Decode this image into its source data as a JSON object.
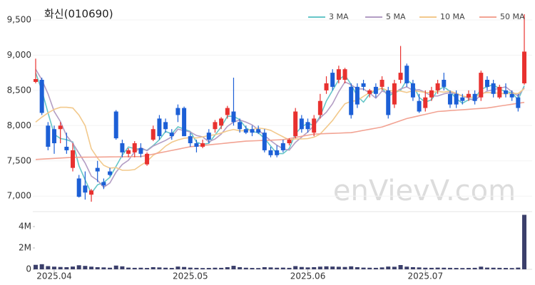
{
  "chart_data": {
    "type": "candlestick",
    "title": "화신(010690)",
    "watermark": "enVievV.com",
    "categories": [
      null,
      null,
      null,
      "2025.04",
      null,
      null,
      null,
      null,
      null,
      null,
      null,
      null,
      null,
      null,
      null,
      null,
      null,
      null,
      null,
      null,
      null,
      null,
      null,
      null,
      null,
      "2025.05",
      null,
      null,
      null,
      null,
      null,
      null,
      null,
      null,
      null,
      null,
      null,
      null,
      null,
      null,
      null,
      null,
      null,
      null,
      "2025.06",
      null,
      null,
      null,
      null,
      null,
      null,
      null,
      null,
      null,
      null,
      null,
      null,
      null,
      null,
      null,
      null,
      null,
      null,
      "2025.07",
      null,
      null,
      null,
      null,
      null,
      null,
      null,
      null,
      null,
      null,
      null,
      null,
      null,
      null,
      null,
      null
    ],
    "open": [
      8620,
      8650,
      8000,
      7950,
      7950,
      7700,
      7400,
      7250,
      7150,
      7020,
      7400,
      7200,
      7350,
      8200,
      7750,
      7600,
      7620,
      7680,
      7450,
      7800,
      8100,
      8050,
      7900,
      8250,
      8250,
      7850,
      7750,
      7700,
      7900,
      7950,
      8000,
      8150,
      8200,
      8050,
      7950,
      7950,
      7950,
      7900,
      7650,
      7650,
      7750,
      7750,
      7850,
      8100,
      8050,
      7900,
      8150,
      8500,
      8750,
      8650,
      8650,
      8550,
      8550,
      8600,
      8450,
      8550,
      8550,
      8500,
      8300,
      8650,
      8850,
      8600,
      8350,
      8250,
      8400,
      8500,
      8650,
      8450,
      8450,
      8400,
      8400,
      8450,
      8400,
      8650,
      8600,
      8400,
      8500,
      8450,
      8400,
      8600
    ],
    "high": [
      8950,
      8680,
      8050,
      8000,
      8050,
      7900,
      7750,
      7300,
      7350,
      7100,
      7500,
      7250,
      7400,
      8220,
      7800,
      7680,
      7780,
      7750,
      7620,
      8000,
      8150,
      8100,
      7950,
      8300,
      8270,
      7900,
      7800,
      7800,
      7950,
      8080,
      8120,
      8280,
      8680,
      8100,
      8000,
      8000,
      8000,
      7950,
      7700,
      7720,
      7800,
      7820,
      8250,
      8150,
      8100,
      8150,
      8450,
      8700,
      8800,
      8850,
      8820,
      8600,
      8600,
      8650,
      8520,
      8600,
      8700,
      8550,
      8650,
      9130,
      8880,
      8650,
      8450,
      8500,
      8550,
      8650,
      8750,
      8500,
      8500,
      8450,
      8500,
      8500,
      8780,
      8700,
      8650,
      8580,
      8600,
      8500,
      8450,
      9580
    ],
    "low": [
      8600,
      8150,
      7650,
      7600,
      7750,
      7600,
      7350,
      6980,
      6950,
      6920,
      7200,
      7100,
      7280,
      7800,
      7550,
      7550,
      7550,
      7550,
      7430,
      7780,
      7800,
      7900,
      7800,
      8050,
      7850,
      7700,
      7620,
      7680,
      7750,
      7900,
      7950,
      8100,
      8000,
      7900,
      7880,
      7850,
      7880,
      7620,
      7550,
      7550,
      7620,
      7720,
      7820,
      7900,
      7900,
      7850,
      8100,
      8450,
      8500,
      8600,
      8600,
      8100,
      8250,
      8500,
      8400,
      8400,
      8500,
      8100,
      8250,
      8600,
      8550,
      8350,
      8180,
      8200,
      8350,
      8450,
      8500,
      8250,
      8250,
      8300,
      8350,
      8300,
      8350,
      8500,
      8400,
      8380,
      8400,
      8350,
      8200,
      8580
    ],
    "close": [
      8660,
      8180,
      7700,
      7750,
      8000,
      7650,
      7650,
      6990,
      7050,
      7080,
      7350,
      7150,
      7300,
      7820,
      7620,
      7650,
      7750,
      7600,
      7600,
      7950,
      7850,
      7950,
      7850,
      8150,
      7850,
      7750,
      7700,
      7750,
      7800,
      8050,
      8100,
      8250,
      8050,
      7950,
      7900,
      7900,
      7900,
      7650,
      7580,
      7580,
      7650,
      7800,
      8200,
      7950,
      7950,
      8100,
      8350,
      8600,
      8550,
      8800,
      8800,
      8150,
      8300,
      8550,
      8500,
      8450,
      8650,
      8150,
      8600,
      8750,
      8600,
      8400,
      8200,
      8400,
      8500,
      8600,
      8550,
      8300,
      8300,
      8350,
      8450,
      8350,
      8750,
      8550,
      8450,
      8550,
      8450,
      8400,
      8250,
      9050
    ],
    "volume": [
      420000,
      480000,
      300000,
      250000,
      220000,
      200000,
      260000,
      380000,
      320000,
      250000,
      200000,
      180000,
      150000,
      350000,
      280000,
      160000,
      140000,
      150000,
      130000,
      200000,
      180000,
      150000,
      130000,
      260000,
      220000,
      160000,
      140000,
      120000,
      130000,
      150000,
      140000,
      200000,
      330000,
      200000,
      150000,
      130000,
      120000,
      200000,
      180000,
      150000,
      160000,
      140000,
      300000,
      220000,
      180000,
      200000,
      250000,
      280000,
      260000,
      240000,
      220000,
      280000,
      200000,
      160000,
      150000,
      140000,
      180000,
      260000,
      240000,
      400000,
      250000,
      200000,
      180000,
      150000,
      140000,
      160000,
      150000,
      140000,
      130000,
      120000,
      130000,
      140000,
      250000,
      160000,
      150000,
      140000,
      130000,
      120000,
      160000,
      5100000
    ],
    "up_color": "#e8312f",
    "down_color": "#1c5fd6",
    "volume_color": "#3b3f6b",
    "series": [
      {
        "name": "3 MA",
        "color": "#66c6c8",
        "values": [
          8750,
          8500,
          8180,
          7877,
          7817,
          7800,
          7767,
          7430,
          7230,
          7040,
          7160,
          7193,
          7267,
          7423,
          7580,
          7697,
          7673,
          7667,
          7650,
          7717,
          7800,
          7917,
          7883,
          7983,
          7950,
          7917,
          7767,
          7733,
          7750,
          7867,
          7983,
          8133,
          8133,
          8083,
          7967,
          7917,
          7900,
          7817,
          7710,
          7603,
          7603,
          7677,
          7883,
          7983,
          8033,
          8000,
          8133,
          8350,
          8500,
          8650,
          8717,
          8583,
          8417,
          8333,
          8450,
          8500,
          8533,
          8417,
          8467,
          8500,
          8650,
          8583,
          8400,
          8333,
          8367,
          8500,
          8550,
          8483,
          8383,
          8317,
          8367,
          8383,
          8517,
          8550,
          8583,
          8517,
          8483,
          8467,
          8367,
          8567
        ]
      },
      {
        "name": "5 MA",
        "color": "#b39dc4",
        "values": [
          8800,
          8650,
          8450,
          8200,
          8058,
          7856,
          7750,
          7608,
          7468,
          7284,
          7224,
          7124,
          7186,
          7340,
          7448,
          7508,
          7628,
          7688,
          7644,
          7710,
          7750,
          7790,
          7840,
          7950,
          7930,
          7910,
          7860,
          7840,
          7770,
          7810,
          7880,
          7990,
          8050,
          8080,
          8050,
          8010,
          7940,
          7860,
          7786,
          7722,
          7672,
          7652,
          7762,
          7836,
          7910,
          8000,
          8110,
          8190,
          8310,
          8480,
          8620,
          8580,
          8520,
          8520,
          8460,
          8390,
          8490,
          8460,
          8470,
          8520,
          8550,
          8500,
          8510,
          8470,
          8420,
          8420,
          8450,
          8470,
          8450,
          8420,
          8390,
          8350,
          8440,
          8490,
          8510,
          8530,
          8550,
          8480,
          8420,
          8540
        ]
      },
      {
        "name": "10 MA",
        "color": "#f2c98c",
        "values": [
          8050,
          8120,
          8180,
          8230,
          8260,
          8260,
          8250,
          8150,
          8000,
          7671,
          7540,
          7437,
          7397,
          7404,
          7366,
          7366,
          7376,
          7437,
          7492,
          7579,
          7629,
          7709,
          7764,
          7797,
          7820,
          7830,
          7825,
          7840,
          7860,
          7870,
          7895,
          7925,
          7945,
          7925,
          7930,
          7945,
          7965,
          7955,
          7933,
          7886,
          7841,
          7796,
          7811,
          7811,
          7816,
          7836,
          7881,
          7976,
          8073,
          8195,
          8310,
          8345,
          8355,
          8415,
          8470,
          8505,
          8535,
          8490,
          8495,
          8490,
          8470,
          8495,
          8485,
          8470,
          8470,
          8485,
          8475,
          8490,
          8460,
          8420,
          8405,
          8400,
          8455,
          8470,
          8465,
          8460,
          8450,
          8460,
          8455,
          8525
        ]
      },
      {
        "name": "50 MA",
        "color": "#f2a393",
        "values": [
          7520,
          7525,
          7530,
          7535,
          7540,
          7545,
          7550,
          7551,
          7552,
          7553,
          7554,
          7555,
          7556,
          7557,
          7558,
          7559,
          7560,
          7560,
          7578,
          7595,
          7613,
          7630,
          7648,
          7665,
          7683,
          7700,
          7709,
          7718,
          7727,
          7736,
          7744,
          7753,
          7762,
          7771,
          7780,
          7783,
          7787,
          7790,
          7793,
          7797,
          7800,
          7816,
          7832,
          7848,
          7864,
          7880,
          7883,
          7887,
          7890,
          7893,
          7897,
          7900,
          7916,
          7932,
          7948,
          7964,
          7980,
          8010,
          8040,
          8070,
          8100,
          8120,
          8140,
          8160,
          8180,
          8200,
          8206,
          8213,
          8219,
          8225,
          8231,
          8238,
          8244,
          8250,
          8263,
          8277,
          8290,
          8303,
          8317,
          8330
        ]
      }
    ],
    "ylim": [
      6800,
      9580
    ],
    "yticks": [
      {
        "value": 7000,
        "label": "7,000"
      },
      {
        "value": 7500,
        "label": "7,500"
      },
      {
        "value": 8000,
        "label": "8,000"
      },
      {
        "value": 8500,
        "label": "8,500"
      },
      {
        "value": 9000,
        "label": "9,000"
      },
      {
        "value": 9500,
        "label": "9,500"
      }
    ],
    "volume_ylim": [
      0,
      5200000
    ],
    "volume_yticks": [
      0,
      {
        "value": 2000000,
        "label": "2M"
      },
      {
        "value": 4000000,
        "label": "4M"
      }
    ]
  }
}
